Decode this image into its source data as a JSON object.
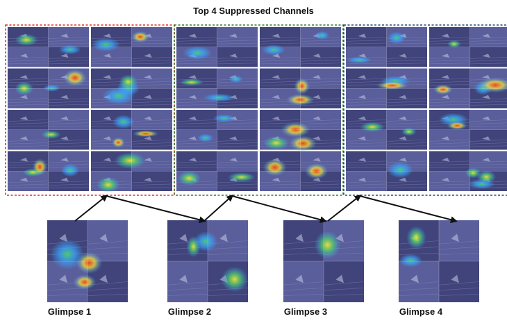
{
  "title": "Top 4 Suppressed Channels",
  "groups": [
    {
      "name": "glimpse-1-channels",
      "border_color": "#e03020"
    },
    {
      "name": "glimpse-2-channels",
      "border_color": "#2e7d32"
    },
    {
      "name": "glimpse-3-channels",
      "border_color": "#1f4e79"
    }
  ],
  "glimpses": [
    {
      "label": "Glimpse 1"
    },
    {
      "label": "Glimpse 2"
    },
    {
      "label": "Glimpse 3"
    },
    {
      "label": "Glimpse 4"
    }
  ],
  "colors": {
    "tile_base": "#5a5f9c",
    "tile_dark": "#3c3f74",
    "heat_hot": "#ff3b1a",
    "heat_warm": "#f4e23a",
    "heat_mid": "#4fd06b",
    "heat_cool": "#39a8ff",
    "arrow": "#111111"
  },
  "icons": [
    "heatmap-tile",
    "arrow-line"
  ]
}
